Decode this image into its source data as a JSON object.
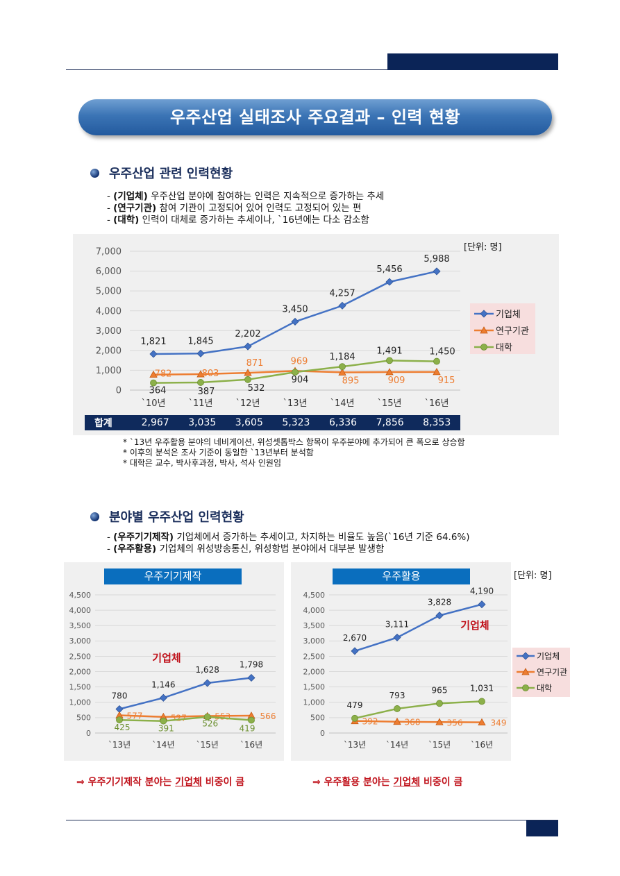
{
  "banner": {
    "title": "우주산업 실태조사 주요결과 – 인력 현황"
  },
  "section1": {
    "title": "우주산업 관련 인력현황",
    "lines": [
      {
        "pre": "- ",
        "bold": "(기업체)",
        "text": " 우주산업 분야에 참여하는 인력은 지속적으로 증가하는 추세"
      },
      {
        "pre": "- ",
        "bold": "(연구기관)",
        "text": " 참여 기관이 고정되어 있어 인력도 고정되어 있는 편"
      },
      {
        "pre": "- ",
        "bold": "(대학)",
        "text": " 인력이 대체로 증가하는 추세이나, `16년에는 다소 감소함"
      }
    ],
    "unit": "[단위: 명]",
    "totals_label": "합계",
    "totals": [
      "2,967",
      "3,035",
      "3,605",
      "5,323",
      "6,336",
      "7,856",
      "8,353"
    ],
    "notes": [
      "* `13년 우주활용 분야의 네비게이션, 위성셋톱박스 항목이 우주분야에 추가되어 큰 폭으로 상승함",
      "* 이후의 분석은 조사 기준이 동일한 `13년부터 분석함",
      "* 대학은 교수, 박사후과정, 박사, 석사 인원임"
    ]
  },
  "section2": {
    "title": "분야별 우주산업 인력현황",
    "lines": [
      {
        "pre": "- ",
        "bold": "(우주기기제작)",
        "text": " 기업체에서 증가하는 추세이고, 차지하는 비율도 높음(`16년 기준 64.6%)"
      },
      {
        "pre": "- ",
        "bold": "(우주활용)",
        "text": " 기업체의 위성방송통신, 위성항법 분야에서 대부분 발생함"
      }
    ],
    "unit": "[단위: 명]",
    "left_box": "우주기기제작",
    "right_box": "우주활용",
    "left_conclusion": {
      "pre": "⇒ 우주기기제작 분야는 ",
      "u": "기업체",
      "post": " 비중이 큼"
    },
    "right_conclusion": {
      "pre": "⇒ 우주활용 분야는 ",
      "u": "기업체",
      "post": " 비중이 큼"
    }
  },
  "colors": {
    "company": "#4472c4",
    "research": "#ed7d31",
    "university": "#8cb04a",
    "navy": "#0f2a5c",
    "highlight": "#c0121b"
  },
  "chart_data": [
    {
      "type": "line",
      "title": "우주산업 관련 인력현황",
      "categories": [
        "`10년",
        "`11년",
        "`12년",
        "`13년",
        "`14년",
        "`15년",
        "`16년"
      ],
      "ylim": [
        0,
        7000
      ],
      "yticks": [
        "0",
        "1,000",
        "2,000",
        "3,000",
        "4,000",
        "5,000",
        "6,000",
        "7,000"
      ],
      "legend": [
        "기업체",
        "연구기관",
        "대학"
      ],
      "series": [
        {
          "name": "기업체",
          "values": [
            1821,
            1845,
            2202,
            3450,
            4257,
            5456,
            5988
          ],
          "labels": [
            "1,821",
            "1,845",
            "2,202",
            "3,450",
            "4,257",
            "5,456",
            "5,988"
          ]
        },
        {
          "name": "연구기관",
          "values": [
            782,
            803,
            871,
            969,
            895,
            909,
            915
          ],
          "labels": [
            "782",
            "803",
            "871",
            "969",
            "895",
            "909",
            "915"
          ]
        },
        {
          "name": "대학",
          "values": [
            364,
            387,
            532,
            904,
            1184,
            1491,
            1450
          ],
          "labels": [
            "364",
            "387",
            "532",
            "904",
            "1,184",
            "1,491",
            "1,450"
          ]
        }
      ]
    },
    {
      "type": "line",
      "title": "우주기기제작",
      "categories": [
        "`13년",
        "`14년",
        "`15년",
        "`16년"
      ],
      "ylim": [
        0,
        4500
      ],
      "yticks": [
        "0",
        "500",
        "1,000",
        "1,500",
        "2,000",
        "2,500",
        "3,000",
        "3,500",
        "4,000",
        "4,500"
      ],
      "annotation": "기업체",
      "series": [
        {
          "name": "기업체",
          "values": [
            780,
            1146,
            1628,
            1798
          ],
          "labels": [
            "780",
            "1,146",
            "1,628",
            "1,798"
          ]
        },
        {
          "name": "연구기관",
          "values": [
            577,
            527,
            553,
            566
          ],
          "labels": [
            "577",
            "527",
            "553",
            "566"
          ]
        },
        {
          "name": "대학",
          "values": [
            425,
            391,
            526,
            419
          ],
          "labels": [
            "425",
            "391",
            "526",
            "419"
          ]
        }
      ]
    },
    {
      "type": "line",
      "title": "우주활용",
      "categories": [
        "`13년",
        "`14년",
        "`15년",
        "`16년"
      ],
      "ylim": [
        0,
        4500
      ],
      "yticks": [
        "0",
        "500",
        "1,000",
        "1,500",
        "2,000",
        "2,500",
        "3,000",
        "3,500",
        "4,000",
        "4,500"
      ],
      "annotation": "기업체",
      "legend": [
        "기업체",
        "연구기관",
        "대학"
      ],
      "series": [
        {
          "name": "기업체",
          "values": [
            2670,
            3111,
            3828,
            4190
          ],
          "labels": [
            "2,670",
            "3,111",
            "3,828",
            "4,190"
          ]
        },
        {
          "name": "연구기관",
          "values": [
            392,
            368,
            356,
            349
          ],
          "labels": [
            "392",
            "368",
            "356",
            "349"
          ]
        },
        {
          "name": "대학",
          "values": [
            479,
            793,
            965,
            1031
          ],
          "labels": [
            "479",
            "793",
            "965",
            "1,031"
          ]
        }
      ]
    }
  ]
}
